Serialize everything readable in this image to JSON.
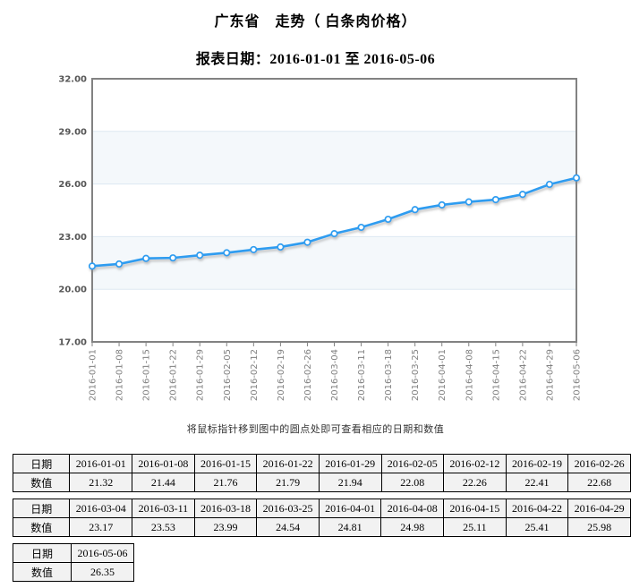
{
  "header": {
    "title": "广东省　走势（ 白条肉价格）",
    "subtitle": "报表日期：2016-01-01 至 2016-05-06"
  },
  "note": "将鼠标指针移到图中的圆点处即可查看相应的日期和数值",
  "chart_data": {
    "type": "line",
    "title": "广东省 走势（白条肉价格）",
    "x": [
      "2016-01-01",
      "2016-01-08",
      "2016-01-15",
      "2016-01-22",
      "2016-01-29",
      "2016-02-05",
      "2016-02-12",
      "2016-02-19",
      "2016-02-26",
      "2016-03-04",
      "2016-03-11",
      "2016-03-18",
      "2016-03-25",
      "2016-04-01",
      "2016-04-08",
      "2016-04-15",
      "2016-04-22",
      "2016-04-29",
      "2016-05-06"
    ],
    "series": [
      {
        "name": "白条肉价格",
        "values": [
          21.32,
          21.44,
          21.76,
          21.79,
          21.94,
          22.08,
          22.26,
          22.41,
          22.68,
          23.17,
          23.53,
          23.99,
          24.54,
          24.81,
          24.98,
          25.11,
          25.41,
          25.98,
          26.35
        ]
      }
    ],
    "ylim": [
      17,
      32
    ],
    "yticks": [
      32,
      29,
      26,
      23,
      20,
      17
    ],
    "grid": true,
    "legend_position": "none",
    "colors": {
      "line": "#2d9cf0",
      "marker_fill": "#ffffff",
      "band": "#f4f8fb",
      "gridline": "#dde9f2",
      "axis_border": "#828282",
      "x_tick_label": "#808080",
      "y_tick_label": "#555555"
    }
  },
  "tables": [
    {
      "row_labels": [
        "日期",
        "数值"
      ],
      "dates": [
        "2016-01-01",
        "2016-01-08",
        "2016-01-15",
        "2016-01-22",
        "2016-01-29",
        "2016-02-05",
        "2016-02-12",
        "2016-02-19",
        "2016-02-26"
      ],
      "values": [
        21.32,
        21.44,
        21.76,
        21.79,
        21.94,
        22.08,
        22.26,
        22.41,
        22.68
      ]
    },
    {
      "row_labels": [
        "日期",
        "数值"
      ],
      "dates": [
        "2016-03-04",
        "2016-03-11",
        "2016-03-18",
        "2016-03-25",
        "2016-04-01",
        "2016-04-08",
        "2016-04-15",
        "2016-04-22",
        "2016-04-29"
      ],
      "values": [
        23.17,
        23.53,
        23.99,
        24.54,
        24.81,
        24.98,
        25.11,
        25.41,
        25.98
      ]
    },
    {
      "row_labels": [
        "日期",
        "数值"
      ],
      "dates": [
        "2016-05-06"
      ],
      "values": [
        26.35
      ]
    }
  ]
}
